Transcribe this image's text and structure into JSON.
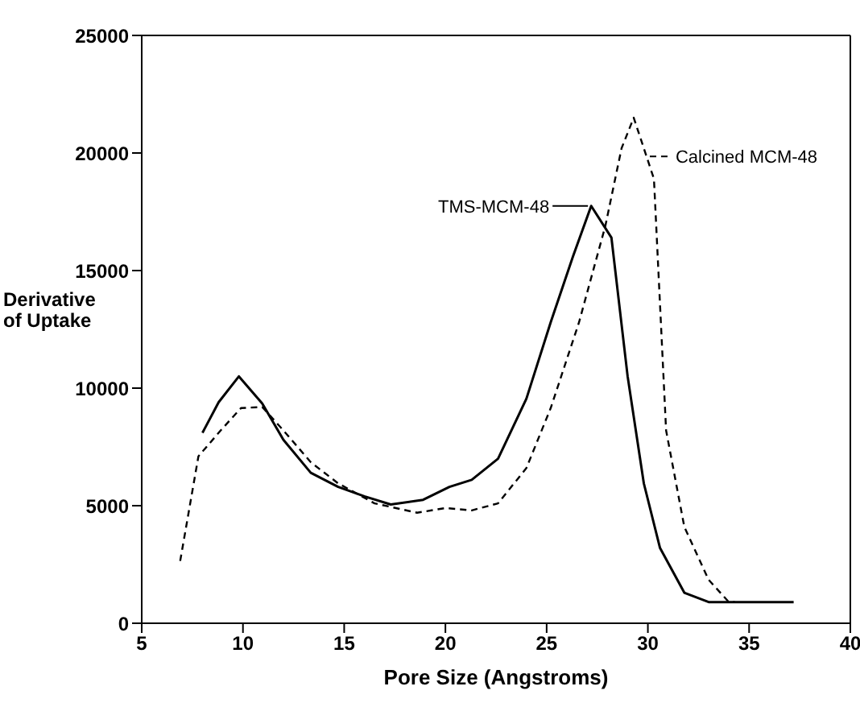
{
  "chart_data": {
    "type": "line",
    "xlabel": "Pore Size (Angstroms)",
    "ylabel": "Derivative of Uptake",
    "xlim": [
      5,
      40
    ],
    "xticks": [
      5,
      10,
      15,
      20,
      25,
      30,
      35,
      40
    ],
    "ylim": [
      0,
      25000
    ],
    "yticks": [
      0,
      5000,
      10000,
      15000,
      20000,
      25000
    ],
    "marker": "none",
    "series": [
      {
        "name": "TMS-MCM-48",
        "color": "#000000",
        "line_style": "solid",
        "x": [
          8,
          8.8,
          9.8,
          10.95,
          12,
          13.35,
          14.7,
          16,
          17.3,
          18.9,
          20.2,
          21.3,
          22.6,
          24,
          25.2,
          26.3,
          27.2,
          28.2,
          29,
          29.8,
          30.6,
          31.8,
          33,
          35,
          37.2
        ],
        "values": [
          8100,
          9400,
          10500,
          9350,
          7800,
          6400,
          5800,
          5400,
          5050,
          5250,
          5800,
          6100,
          7000,
          9550,
          12800,
          15600,
          17750,
          16400,
          10500,
          5950,
          3200,
          1300,
          900,
          900,
          900
        ]
      },
      {
        "name": "Calcined MCM-48",
        "color": "#000000",
        "line_style": "dashed",
        "x": [
          6.9,
          7.8,
          8.9,
          9.9,
          10.95,
          12,
          13.35,
          14.7,
          16.5,
          18.6,
          20,
          21.3,
          22.6,
          24,
          25.2,
          26.6,
          27.9,
          28.7,
          29.3,
          30.3,
          30.9,
          31.8,
          33,
          34,
          34.3
        ],
        "values": [
          2650,
          7100,
          8200,
          9150,
          9200,
          8200,
          6850,
          5950,
          5100,
          4700,
          4900,
          4800,
          5100,
          6600,
          9150,
          12800,
          16900,
          20200,
          21500,
          18900,
          8200,
          4100,
          1850,
          900,
          900
        ]
      }
    ]
  }
}
